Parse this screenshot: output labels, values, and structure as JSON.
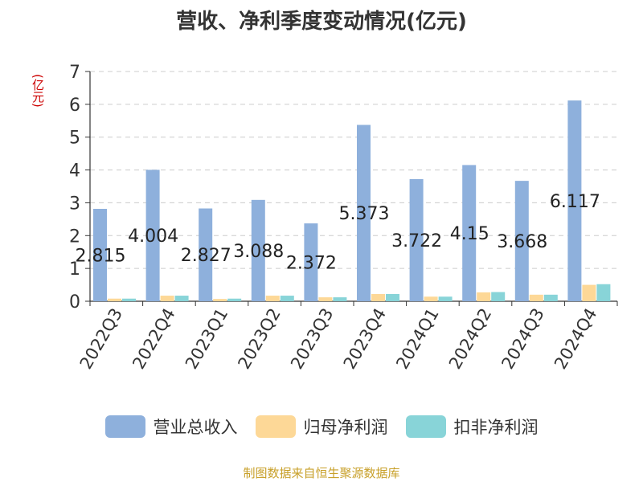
{
  "title": "营收、净利季度变动情况(亿元)",
  "unit_label": "(亿元)",
  "source": "制图数据来自恒生聚源数据库",
  "colors": {
    "revenue": "#8eb0dc",
    "net_profit": "#fdd897",
    "deducted": "#88d4d8",
    "grid": "#cccccc",
    "axis": "#333333"
  },
  "legend": [
    {
      "label": "营业总收入",
      "color": "#8eb0dc"
    },
    {
      "label": "归母净利润",
      "color": "#fdd897"
    },
    {
      "label": "扣非净利润",
      "color": "#88d4d8"
    }
  ],
  "chart_data": {
    "type": "bar",
    "title": "营收、净利季度变动情况(亿元)",
    "ylabel": "(亿元)",
    "ylim": [
      0,
      7
    ],
    "yticks": [
      0,
      1,
      2,
      3,
      4,
      5,
      6,
      7
    ],
    "grid": true,
    "legend_position": "bottom",
    "categories": [
      "2022Q3",
      "2022Q4",
      "2023Q1",
      "2023Q2",
      "2023Q3",
      "2023Q4",
      "2024Q1",
      "2024Q2",
      "2024Q3",
      "2024Q4"
    ],
    "series": [
      {
        "name": "营业总收入",
        "values": [
          2.815,
          4.004,
          2.827,
          3.088,
          2.372,
          5.373,
          3.722,
          4.15,
          3.668,
          6.117
        ],
        "labels": [
          "2.815",
          "4.004",
          "2.827",
          "3.088",
          "2.372",
          "5.373",
          "3.722",
          "4.15",
          "3.668",
          "6.117"
        ]
      },
      {
        "name": "归母净利润",
        "values": [
          0.08,
          0.17,
          0.07,
          0.17,
          0.12,
          0.22,
          0.14,
          0.27,
          0.2,
          0.5
        ]
      },
      {
        "name": "扣非净利润",
        "values": [
          0.08,
          0.17,
          0.08,
          0.17,
          0.12,
          0.22,
          0.14,
          0.28,
          0.2,
          0.52
        ]
      }
    ]
  }
}
